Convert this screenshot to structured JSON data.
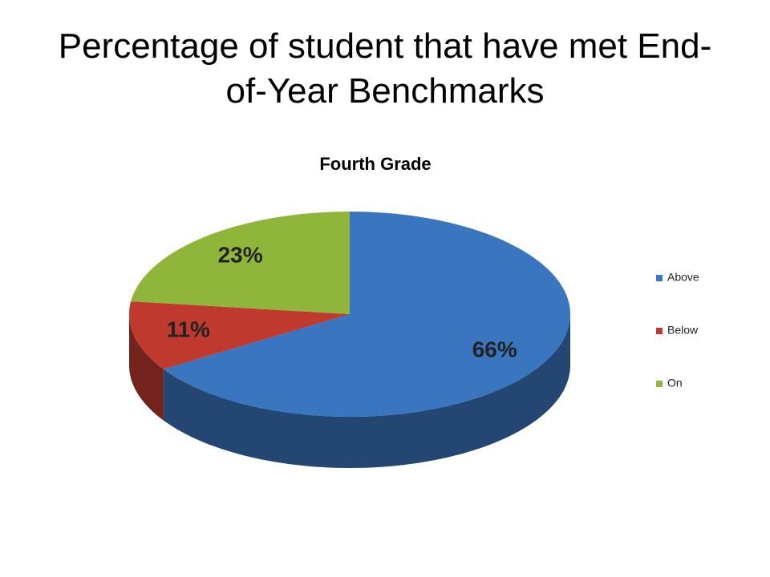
{
  "slide_title": "Percentage of student that have met End-of-Year Benchmarks",
  "chart_data": {
    "type": "pie",
    "title": "Fourth Grade",
    "categories": [
      "Above",
      "Below",
      "On"
    ],
    "values": [
      66,
      11,
      23
    ],
    "value_labels": [
      "66%",
      "11%",
      "23%"
    ],
    "colors": [
      "#3a75c0",
      "#c0392f",
      "#8fb63a"
    ],
    "legend": "right"
  }
}
